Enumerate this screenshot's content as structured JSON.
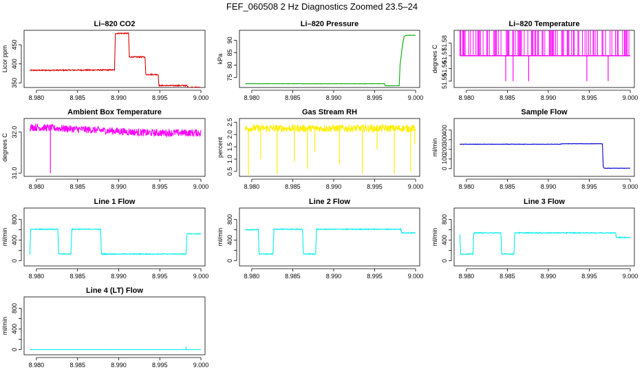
{
  "page": {
    "title": "FEF_060508  2 Hz Diagnostics Zoomed 23.5–24"
  },
  "chart_data": [
    {
      "id": "co2",
      "type": "line",
      "title": "Li–820 CO2",
      "ylabel": "Licor ppm",
      "color": "#dd0000",
      "xlim": [
        8.9785,
        9.0005
      ],
      "ylim": [
        338,
        488
      ],
      "xticks": [
        8.98,
        8.985,
        8.99,
        8.995,
        9.0
      ],
      "xtick_labels": [
        "8.980",
        "8.985",
        "8.990",
        "8.995",
        "9.000"
      ],
      "yticks": [
        350,
        400,
        450
      ],
      "ytick_labels": [
        "350",
        "400",
        "450"
      ],
      "noise": 1.5,
      "spikes": [],
      "series": [
        {
          "name": "CO2",
          "x": [
            8.9792,
            8.9895,
            8.9896,
            8.9912,
            8.9913,
            8.9932,
            8.9933,
            8.9948,
            8.9949,
            8.9983,
            8.9984,
            9.0
          ],
          "y": [
            383,
            384,
            480,
            480,
            418,
            418,
            372,
            372,
            343,
            343,
            338,
            338
          ]
        }
      ]
    },
    {
      "id": "pressure",
      "type": "line",
      "title": "Li–820 Pressure",
      "ylabel": "kPa",
      "color": "#00aa00",
      "xlim": [
        8.9785,
        9.0005
      ],
      "ylim": [
        71,
        94
      ],
      "xticks": [
        8.98,
        8.985,
        8.99,
        8.995,
        9.0
      ],
      "xtick_labels": [
        "8.980",
        "8.985",
        "8.990",
        "8.995",
        "9.000"
      ],
      "yticks": [
        75,
        80,
        85,
        90
      ],
      "ytick_labels": [
        "75",
        "80",
        "85",
        "90"
      ],
      "noise": 0.05,
      "spikes": [],
      "series": [
        {
          "name": "Pressure",
          "x": [
            8.9792,
            8.9962,
            8.9963,
            8.998,
            8.9981,
            8.9984,
            8.9986,
            8.9988,
            9.0
          ],
          "y": [
            72.5,
            72.5,
            71.7,
            71.7,
            80,
            88,
            91.5,
            92,
            92
          ]
        }
      ]
    },
    {
      "id": "temperature",
      "type": "line",
      "title": "Li–820 Temperature",
      "ylabel": "degrees C",
      "color": "#ff00ff",
      "xlim": [
        8.9785,
        9.0005
      ],
      "ylim": [
        51.545,
        51.59
      ],
      "xticks": [
        8.98,
        8.985,
        8.99,
        8.995,
        9.0
      ],
      "xtick_labels": [
        "8.980",
        "8.985",
        "8.990",
        "8.995",
        "9.000"
      ],
      "yticks": [
        51.55,
        51.56,
        51.57,
        51.58
      ],
      "ytick_labels": [
        "51.55",
        "51.56",
        "51.57",
        "51.58"
      ],
      "noise": 0,
      "spikes": [
        [
          8.9848,
          51.55
        ],
        [
          8.9857,
          51.55
        ],
        [
          8.9876,
          51.55
        ],
        [
          8.9947,
          51.55
        ],
        [
          8.9973,
          51.55
        ]
      ],
      "bands": {
        "base": 51.57,
        "high": 51.59
      },
      "series": [
        {
          "name": "Temperature",
          "x": [
            8.9792,
            9.0
          ],
          "y": [
            51.57,
            51.57
          ]
        }
      ]
    },
    {
      "id": "ambient",
      "type": "line",
      "title": "Ambient Box Temperature",
      "ylabel": "degrees C",
      "color": "#ff00ff",
      "xlim": [
        8.9785,
        9.0005
      ],
      "ylim": [
        30.92,
        32.33
      ],
      "xticks": [
        8.98,
        8.985,
        8.99,
        8.995,
        9.0
      ],
      "xtick_labels": [
        "8.980",
        "8.985",
        "8.990",
        "8.995",
        "9.000"
      ],
      "yticks": [
        31.0,
        32.0
      ],
      "ytick_labels": [
        "31.0",
        "32.0"
      ],
      "noise": 0.09,
      "spikes": [
        [
          8.9817,
          31.0
        ]
      ],
      "series": [
        {
          "name": "Ambient",
          "x": [
            8.9792,
            8.986,
            8.99,
            8.9935,
            9.0
          ],
          "y": [
            32.12,
            32.06,
            32.02,
            31.98,
            31.98
          ]
        }
      ]
    },
    {
      "id": "rh",
      "type": "line",
      "title": "Gas Stream RH",
      "ylabel": "percent",
      "color": "#ffee00",
      "xlim": [
        8.9785,
        9.0005
      ],
      "ylim": [
        0.3,
        2.65
      ],
      "xticks": [
        8.98,
        8.985,
        8.99,
        8.995,
        9.0
      ],
      "xtick_labels": [
        "8.980",
        "8.985",
        "8.990",
        "8.995",
        "9.000"
      ],
      "yticks": [
        0.5,
        1.0,
        1.5,
        2.0,
        2.5
      ],
      "ytick_labels": [
        "0.5",
        "1.0",
        "1.5",
        "2.0",
        "2.5"
      ],
      "noise": 0.15,
      "spikes": [
        [
          8.9796,
          0.35
        ],
        [
          8.9811,
          1.0
        ],
        [
          8.9831,
          0.4
        ],
        [
          8.9852,
          0.9
        ],
        [
          8.9868,
          0.6
        ],
        [
          8.9877,
          1.3
        ],
        [
          8.9907,
          0.8
        ],
        [
          8.9935,
          0.4
        ],
        [
          8.9953,
          1.4
        ],
        [
          8.9974,
          0.4
        ],
        [
          8.9994,
          0.5
        ],
        [
          8.9999,
          1.6
        ]
      ],
      "series": [
        {
          "name": "RH",
          "x": [
            8.9792,
            9.0
          ],
          "y": [
            2.25,
            2.25
          ]
        }
      ]
    },
    {
      "id": "sample",
      "type": "line",
      "title": "Sample Flow",
      "ylabel": "ml/min",
      "color": "#0000cc",
      "xlim": [
        8.9785,
        9.0005
      ],
      "ylim": [
        -80,
        520
      ],
      "xticks": [
        8.98,
        8.985,
        8.99,
        8.995,
        9.0
      ],
      "xtick_labels": [
        "8.980",
        "8.985",
        "8.990",
        "8.995",
        "9.000"
      ],
      "yticks": [
        0,
        100,
        200,
        300,
        400
      ],
      "ytick_labels": [
        "0",
        "100",
        "200",
        "300",
        "400"
      ],
      "noise": 2,
      "spikes": [],
      "series": [
        {
          "name": "Sample",
          "x": [
            8.9792,
            8.9915,
            8.9916,
            8.9966,
            8.9967,
            8.9968,
            9.0
          ],
          "y": [
            253,
            253,
            258,
            258,
            20,
            4,
            4
          ]
        }
      ]
    },
    {
      "id": "line1",
      "type": "line",
      "title": "Line 1 Flow",
      "ylabel": "ml/min",
      "color": "#00eeee",
      "xlim": [
        8.9785,
        9.0005
      ],
      "ylim": [
        -100,
        1020
      ],
      "xticks": [
        8.98,
        8.985,
        8.99,
        8.995,
        9.0
      ],
      "xtick_labels": [
        "8.980",
        "8.985",
        "8.990",
        "8.995",
        "9.000"
      ],
      "yticks": [
        0,
        200,
        400,
        600,
        800
      ],
      "ytick_labels": [
        "0",
        "400",
        "800"
      ],
      "ytick_label_values": [
        0,
        400,
        800
      ],
      "noise": 8,
      "spikes": [],
      "series": [
        {
          "name": "Line 1",
          "x": [
            8.9792,
            8.9793,
            8.9826,
            8.9827,
            8.9842,
            8.9843,
            8.9878,
            8.9879,
            8.9982,
            8.9983,
            9.0
          ],
          "y": [
            120,
            610,
            610,
            130,
            130,
            610,
            610,
            130,
            130,
            520,
            520
          ]
        }
      ]
    },
    {
      "id": "line2",
      "type": "line",
      "title": "Line 2 Flow",
      "ylabel": "ml/min",
      "color": "#00eeee",
      "xlim": [
        8.9785,
        9.0005
      ],
      "ylim": [
        -100,
        1020
      ],
      "xticks": [
        8.98,
        8.985,
        8.99,
        8.995,
        9.0
      ],
      "xtick_labels": [
        "8.980",
        "8.985",
        "8.990",
        "8.995",
        "9.000"
      ],
      "yticks": [
        0,
        200,
        400,
        600,
        800
      ],
      "ytick_labels": [
        "0",
        "400",
        "800"
      ],
      "ytick_label_values": [
        0,
        400,
        800
      ],
      "noise": 8,
      "spikes": [],
      "series": [
        {
          "name": "Line 2",
          "x": [
            8.9792,
            8.9808,
            8.9809,
            8.9826,
            8.9827,
            8.9862,
            8.9863,
            8.9878,
            8.9879,
            8.9982,
            8.9983,
            9.0
          ],
          "y": [
            600,
            600,
            130,
            130,
            610,
            610,
            130,
            130,
            610,
            610,
            540,
            540
          ]
        }
      ]
    },
    {
      "id": "line3",
      "type": "line",
      "title": "Line 3 Flow",
      "ylabel": "ml/min",
      "color": "#00eeee",
      "xlim": [
        8.9785,
        9.0005
      ],
      "ylim": [
        -100,
        1020
      ],
      "xticks": [
        8.98,
        8.985,
        8.99,
        8.995,
        9.0
      ],
      "xtick_labels": [
        "8.980",
        "8.985",
        "8.990",
        "8.995",
        "9.000"
      ],
      "yticks": [
        0,
        200,
        400,
        600,
        800
      ],
      "ytick_labels": [
        "0",
        "400",
        "800"
      ],
      "ytick_label_values": [
        0,
        400,
        800
      ],
      "noise": 8,
      "spikes": [],
      "series": [
        {
          "name": "Line 3",
          "x": [
            8.9792,
            8.9793,
            8.9808,
            8.9809,
            8.9842,
            8.9843,
            8.9858,
            8.9859,
            8.9982,
            8.9983,
            9.0
          ],
          "y": [
            510,
            130,
            130,
            540,
            540,
            130,
            130,
            540,
            540,
            450,
            450
          ]
        }
      ]
    },
    {
      "id": "line4",
      "type": "line",
      "title": "Line 4 (LT) Flow",
      "ylabel": "ml/min",
      "color": "#00eeee",
      "xlim": [
        8.9785,
        9.0005
      ],
      "ylim": [
        -100,
        1020
      ],
      "xticks": [
        8.98,
        8.985,
        8.99,
        8.995,
        9.0
      ],
      "xtick_labels": [
        "8.980",
        "8.985",
        "8.990",
        "8.995",
        "9.000"
      ],
      "yticks": [
        0,
        200,
        400,
        600,
        800
      ],
      "ytick_labels": [
        "0",
        "400",
        "800"
      ],
      "ytick_label_values": [
        0,
        400,
        800
      ],
      "noise": 1,
      "spikes": [
        [
          8.9982,
          60
        ]
      ],
      "series": [
        {
          "name": "Line 4",
          "x": [
            8.9792,
            9.0
          ],
          "y": [
            0,
            0
          ]
        }
      ]
    }
  ]
}
